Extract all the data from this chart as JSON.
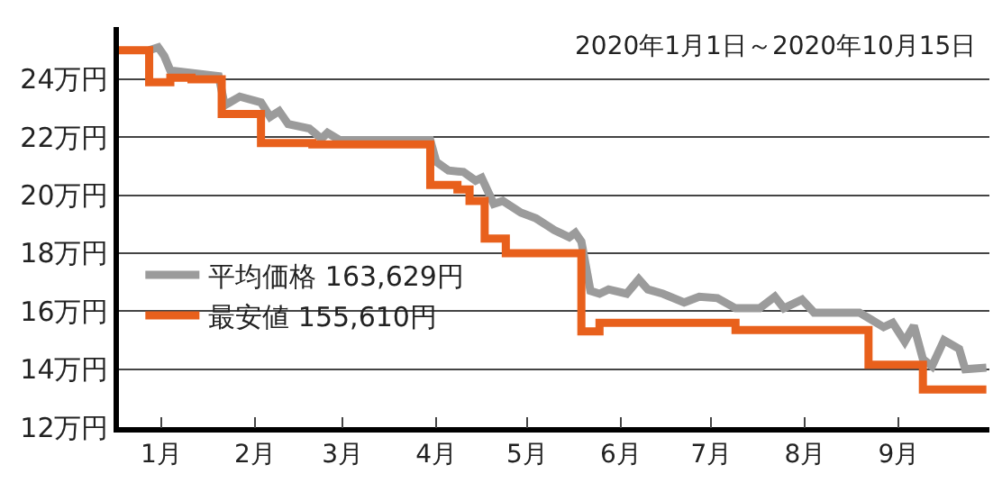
{
  "chart_data": {
    "type": "line",
    "annotations": [
      "2020年1月1日～2020年10月15日"
    ],
    "xlim": [
      "2020-01-01",
      "2020-10-15"
    ],
    "xticks": [
      {
        "value": "2020-01-15",
        "label": "1月"
      },
      {
        "value": "2020-02-15",
        "label": "2月"
      },
      {
        "value": "2020-03-15",
        "label": "3月"
      },
      {
        "value": "2020-04-15",
        "label": "4月"
      },
      {
        "value": "2020-05-15",
        "label": "5月"
      },
      {
        "value": "2020-06-15",
        "label": "6月"
      },
      {
        "value": "2020-07-15",
        "label": "7月"
      },
      {
        "value": "2020-08-15",
        "label": "8月"
      },
      {
        "value": "2020-09-15",
        "label": "9月"
      }
    ],
    "ylim": [
      12,
      25.8
    ],
    "yticks": [
      {
        "value": 12,
        "label": "12万円"
      },
      {
        "value": 14,
        "label": "14万円"
      },
      {
        "value": 16,
        "label": "16万円"
      },
      {
        "value": 18,
        "label": "18万円"
      },
      {
        "value": 20,
        "label": "20万円"
      },
      {
        "value": 22,
        "label": "22万円"
      },
      {
        "value": 24,
        "label": "24万円"
      }
    ],
    "grid": "y",
    "legend": "left",
    "marker": "none",
    "line_style": "solid",
    "series": [
      {
        "name": "平均価格 163,629円",
        "color": "#9b9b9b",
        "x": [
          "2020-01-11",
          "2020-01-14",
          "2020-01-16",
          "2020-01-18",
          "2020-02-03",
          "2020-02-05",
          "2020-02-10",
          "2020-02-17",
          "2020-02-20",
          "2020-02-23",
          "2020-02-26",
          "2020-03-04",
          "2020-03-08",
          "2020-03-10",
          "2020-03-14",
          "2020-04-13",
          "2020-04-15",
          "2020-04-19",
          "2020-04-24",
          "2020-04-28",
          "2020-04-30",
          "2020-05-04",
          "2020-05-07",
          "2020-05-13",
          "2020-05-18",
          "2020-05-24",
          "2020-05-29",
          "2020-05-31",
          "2020-06-02",
          "2020-06-05",
          "2020-06-08",
          "2020-06-11",
          "2020-06-17",
          "2020-06-21",
          "2020-06-24",
          "2020-06-29",
          "2020-07-06",
          "2020-07-11",
          "2020-07-17",
          "2020-07-23",
          "2020-07-31",
          "2020-08-05",
          "2020-08-08",
          "2020-08-14",
          "2020-08-18",
          "2020-09-02",
          "2020-09-06",
          "2020-09-10",
          "2020-09-13",
          "2020-09-17",
          "2020-09-20",
          "2020-09-23",
          "2020-09-26",
          "2020-09-30",
          "2020-10-05",
          "2020-10-07",
          "2020-10-14"
        ],
        "values": [
          25.0,
          25.1,
          24.8,
          24.3,
          24.1,
          23.1,
          23.4,
          23.2,
          22.7,
          22.9,
          22.45,
          22.3,
          21.95,
          22.15,
          21.9,
          21.9,
          21.15,
          20.85,
          20.8,
          20.5,
          20.6,
          19.7,
          19.8,
          19.4,
          19.2,
          18.8,
          18.55,
          18.7,
          18.4,
          16.7,
          16.6,
          16.75,
          16.6,
          17.1,
          16.75,
          16.6,
          16.3,
          16.5,
          16.45,
          16.1,
          16.1,
          16.5,
          16.1,
          16.4,
          15.95,
          15.95,
          15.7,
          15.45,
          15.6,
          14.95,
          15.5,
          14.35,
          14.1,
          15.0,
          14.7,
          14.0,
          14.05
        ]
      },
      {
        "name": "最安値 155,610円",
        "color": "#e8601c",
        "type": "step",
        "x": [
          "2020-01-01",
          "2020-01-11",
          "2020-01-18",
          "2020-01-25",
          "2020-02-04",
          "2020-02-17",
          "2020-03-05",
          "2020-04-13",
          "2020-04-22",
          "2020-04-26",
          "2020-05-01",
          "2020-05-08",
          "2020-06-02",
          "2020-06-08",
          "2020-07-23",
          "2020-09-05",
          "2020-09-23",
          "2020-10-14"
        ],
        "values": [
          25.0,
          23.9,
          24.05,
          24.0,
          22.8,
          21.8,
          21.75,
          20.35,
          20.2,
          19.8,
          18.5,
          18.0,
          15.3,
          15.6,
          15.35,
          14.15,
          13.3,
          13.3
        ]
      }
    ]
  }
}
